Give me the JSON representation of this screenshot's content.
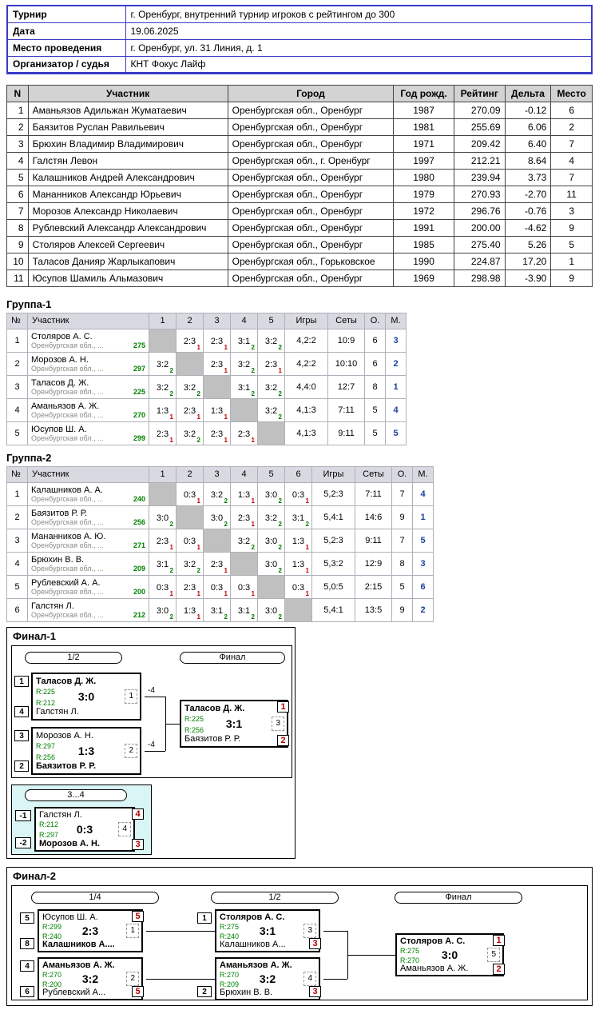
{
  "colors": {
    "info_border": "#3a3ac8",
    "header_gray": "#d3d3d3",
    "group_header": "#d9d9e1",
    "diagonal_gray": "#c0c0c0",
    "win_green": "#007800",
    "loss_red": "#c00000",
    "rating_green": "#008000",
    "place_blue": "#1a3fa0",
    "badge_red": "#b00000",
    "panel_cyan": "#d9f5f5"
  },
  "info": {
    "rows": [
      {
        "label": "Турнир",
        "value": "г. Оренбург, внутренний турнир игроков с рейтингом до 300"
      },
      {
        "label": "Дата",
        "value": "19.06.2025"
      },
      {
        "label": "Место проведения",
        "value": "г. Оренбург, ул. 31 Линия, д. 1"
      },
      {
        "label": "Организатор / судья",
        "value": "КНТ Фокус Лайф"
      }
    ]
  },
  "participants": {
    "headers": [
      "N",
      "Участник",
      "Город",
      "Год рожд.",
      "Рейтинг",
      "Дельта",
      "Место"
    ],
    "rows": [
      [
        "1",
        "Аманьязов Адильжан Жуматаевич",
        "Оренбургская обл., Оренбург",
        "1987",
        "270.09",
        "-0.12",
        "6"
      ],
      [
        "2",
        "Баязитов Руслан Равильевич",
        "Оренбургская обл., Оренбург",
        "1981",
        "255.69",
        "6.06",
        "2"
      ],
      [
        "3",
        "Брюхин Владимир Владимирович",
        "Оренбургская обл., Оренбург",
        "1971",
        "209.42",
        "6.40",
        "7"
      ],
      [
        "4",
        "Галстян Левон",
        "Оренбургская обл., г. Оренбург",
        "1997",
        "212.21",
        "8.64",
        "4"
      ],
      [
        "5",
        "Калашников Андрей Александрович",
        "Оренбургская обл., Оренбург",
        "1980",
        "239.94",
        "3.73",
        "7"
      ],
      [
        "6",
        "Мананников Александр Юрьевич",
        "Оренбургская обл., Оренбург",
        "1979",
        "270.93",
        "-2.70",
        "11"
      ],
      [
        "7",
        "Морозов Александр Николаевич",
        "Оренбургская обл., Оренбург",
        "1972",
        "296.76",
        "-0.76",
        "3"
      ],
      [
        "8",
        "Рублевский Александр Александрович",
        "Оренбургская обл., Оренбург",
        "1991",
        "200.00",
        "-4.62",
        "9"
      ],
      [
        "9",
        "Столяров Алексей Сергеевич",
        "Оренбургская обл., Оренбург",
        "1985",
        "275.40",
        "5.26",
        "5"
      ],
      [
        "10",
        "Таласов Данияр Жарлыкапович",
        "Оренбургская обл., Горьковское",
        "1990",
        "224.87",
        "17.20",
        "1"
      ],
      [
        "11",
        "Юсупов Шамиль Альмазович",
        "Оренбургская обл., Оренбург",
        "1969",
        "298.98",
        "-3.90",
        "9"
      ]
    ]
  },
  "groups": [
    {
      "title": "Группа-1",
      "num_header": "№",
      "name_header": "Участник",
      "round_cols": [
        "1",
        "2",
        "3",
        "4",
        "5"
      ],
      "tail_headers": [
        "Игры",
        "Сеты",
        "О.",
        "М."
      ],
      "rows": [
        {
          "n": "1",
          "name": "Столяров А. С.",
          "region": "Оренбургская обл., ...",
          "rating": "275",
          "cells": [
            null,
            {
              "s": "2:3",
              "p": "1"
            },
            {
              "s": "2:3",
              "p": "1"
            },
            {
              "s": "3:1",
              "p": "2"
            },
            {
              "s": "3:2",
              "p": "2"
            }
          ],
          "games": "4,2:2",
          "sets": "10:9",
          "pts": "6",
          "place": "3"
        },
        {
          "n": "2",
          "name": "Морозов А. Н.",
          "region": "Оренбургская обл., ...",
          "rating": "297",
          "cells": [
            {
              "s": "3:2",
              "p": "2"
            },
            null,
            {
              "s": "2:3",
              "p": "1"
            },
            {
              "s": "3:2",
              "p": "2"
            },
            {
              "s": "2:3",
              "p": "1"
            }
          ],
          "games": "4,2:2",
          "sets": "10:10",
          "pts": "6",
          "place": "2"
        },
        {
          "n": "3",
          "name": "Таласов Д. Ж.",
          "region": "Оренбургская обл., ...",
          "rating": "225",
          "cells": [
            {
              "s": "3:2",
              "p": "2"
            },
            {
              "s": "3:2",
              "p": "2"
            },
            null,
            {
              "s": "3:1",
              "p": "2"
            },
            {
              "s": "3:2",
              "p": "2"
            }
          ],
          "games": "4,4:0",
          "sets": "12:7",
          "pts": "8",
          "place": "1"
        },
        {
          "n": "4",
          "name": "Аманьязов А. Ж.",
          "region": "Оренбургская обл., ...",
          "rating": "270",
          "cells": [
            {
              "s": "1:3",
              "p": "1"
            },
            {
              "s": "2:3",
              "p": "1"
            },
            {
              "s": "1:3",
              "p": "1"
            },
            null,
            {
              "s": "3:2",
              "p": "2"
            }
          ],
          "games": "4,1:3",
          "sets": "7:11",
          "pts": "5",
          "place": "4"
        },
        {
          "n": "5",
          "name": "Юсупов Ш. А.",
          "region": "Оренбургская обл., ...",
          "rating": "299",
          "cells": [
            {
              "s": "2:3",
              "p": "1"
            },
            {
              "s": "3:2",
              "p": "2"
            },
            {
              "s": "2:3",
              "p": "1"
            },
            {
              "s": "2:3",
              "p": "1"
            },
            null
          ],
          "games": "4,1:3",
          "sets": "9:11",
          "pts": "5",
          "place": "5"
        }
      ]
    },
    {
      "title": "Группа-2",
      "num_header": "№",
      "name_header": "Участник",
      "round_cols": [
        "1",
        "2",
        "3",
        "4",
        "5",
        "6"
      ],
      "tail_headers": [
        "Игры",
        "Сеты",
        "О.",
        "М."
      ],
      "rows": [
        {
          "n": "1",
          "name": "Калашников А. А.",
          "region": "Оренбургская обл., ...",
          "rating": "240",
          "cells": [
            null,
            {
              "s": "0:3",
              "p": "1"
            },
            {
              "s": "3:2",
              "p": "2"
            },
            {
              "s": "1:3",
              "p": "1"
            },
            {
              "s": "3:0",
              "p": "2"
            },
            {
              "s": "0:3",
              "p": "1"
            }
          ],
          "games": "5,2:3",
          "sets": "7:11",
          "pts": "7",
          "place": "4"
        },
        {
          "n": "2",
          "name": "Баязитов Р. Р.",
          "region": "Оренбургская обл., ...",
          "rating": "256",
          "cells": [
            {
              "s": "3:0",
              "p": "2"
            },
            null,
            {
              "s": "3:0",
              "p": "2"
            },
            {
              "s": "2:3",
              "p": "1"
            },
            {
              "s": "3:2",
              "p": "2"
            },
            {
              "s": "3:1",
              "p": "2"
            }
          ],
          "games": "5,4:1",
          "sets": "14:6",
          "pts": "9",
          "place": "1"
        },
        {
          "n": "3",
          "name": "Мананников А. Ю.",
          "region": "Оренбургская обл., ...",
          "rating": "271",
          "cells": [
            {
              "s": "2:3",
              "p": "1"
            },
            {
              "s": "0:3",
              "p": "1"
            },
            null,
            {
              "s": "3:2",
              "p": "2"
            },
            {
              "s": "3:0",
              "p": "2"
            },
            {
              "s": "1:3",
              "p": "1"
            }
          ],
          "games": "5,2:3",
          "sets": "9:11",
          "pts": "7",
          "place": "5"
        },
        {
          "n": "4",
          "name": "Брюхин В. В.",
          "region": "Оренбургская обл., ...",
          "rating": "209",
          "cells": [
            {
              "s": "3:1",
              "p": "2"
            },
            {
              "s": "3:2",
              "p": "2"
            },
            {
              "s": "2:3",
              "p": "1"
            },
            null,
            {
              "s": "3:0",
              "p": "2"
            },
            {
              "s": "1:3",
              "p": "1"
            }
          ],
          "games": "5,3:2",
          "sets": "12:9",
          "pts": "8",
          "place": "3"
        },
        {
          "n": "5",
          "name": "Рублевский А. А.",
          "region": "Оренбургская обл., ...",
          "rating": "200",
          "cells": [
            {
              "s": "0:3",
              "p": "1"
            },
            {
              "s": "2:3",
              "p": "1"
            },
            {
              "s": "0:3",
              "p": "1"
            },
            {
              "s": "0:3",
              "p": "1"
            },
            null,
            {
              "s": "0:3",
              "p": "1"
            }
          ],
          "games": "5,0:5",
          "sets": "2:15",
          "pts": "5",
          "place": "6"
        },
        {
          "n": "6",
          "name": "Галстян Л.",
          "region": "Оренбургская обл., ...",
          "rating": "212",
          "cells": [
            {
              "s": "3:0",
              "p": "2"
            },
            {
              "s": "1:3",
              "p": "1"
            },
            {
              "s": "3:1",
              "p": "2"
            },
            {
              "s": "3:1",
              "p": "2"
            },
            {
              "s": "3:0",
              "p": "2"
            },
            null
          ],
          "games": "5,4:1",
          "sets": "13:5",
          "pts": "9",
          "place": "2"
        }
      ]
    }
  ],
  "final1": {
    "title": "Финал-1",
    "rounds": [
      "1/2",
      "Финал"
    ],
    "sf1": {
      "match_no": "1",
      "loser_to": "-4",
      "score": "3:0",
      "top": {
        "seed": "1",
        "name": "Таласов Д. Ж.",
        "rating": "R:225"
      },
      "bottom": {
        "seed": "4",
        "name": "Галстян Л.",
        "rating": "R:212"
      }
    },
    "sf2": {
      "match_no": "2",
      "loser_to": "-4",
      "score": "1:3",
      "top": {
        "seed": "3",
        "name": "Морозов А. Н.",
        "rating": "R:297"
      },
      "bottom": {
        "seed": "2",
        "name": "Баязитов Р. Р.",
        "rating": "R:256"
      }
    },
    "final": {
      "match_no": "3",
      "score": "3:1",
      "top": {
        "name": "Таласов Д. Ж.",
        "rating": "R:225",
        "place": "1"
      },
      "bottom": {
        "name": "Баязитов Р. Р.",
        "rating": "R:256",
        "place": "2"
      }
    },
    "match34": {
      "label": "3...4",
      "match_no": "4",
      "score": "0:3",
      "top": {
        "seed": "-1",
        "name": "Галстян Л.",
        "rating": "R:212",
        "place": "4"
      },
      "bottom": {
        "seed": "-2",
        "name": "Морозов А. Н.",
        "rating": "R:297",
        "place": "3"
      }
    }
  },
  "final2": {
    "title": "Финал-2",
    "rounds": [
      "1/4",
      "1/2",
      "Финал"
    ],
    "qf1": {
      "match_no": "1",
      "score": "2:3",
      "top": {
        "seed": "5",
        "name": "Юсупов Ш. А.",
        "rating": "R:299",
        "place": "5"
      },
      "bottom": {
        "seed": "8",
        "name": "Калашников А....",
        "rating": "R:240"
      }
    },
    "qf2": {
      "match_no": "2",
      "score": "3:2",
      "top": {
        "seed": "4",
        "name": "Аманьязов А. Ж.",
        "rating": "R:270"
      },
      "bottom": {
        "seed": "6",
        "name": "Рублевский А...",
        "rating": "R:200",
        "place": "5"
      }
    },
    "sf1": {
      "match_no": "3",
      "score": "3:1",
      "top": {
        "seed": "1",
        "name": "Столяров А. С.",
        "rating": "R:275"
      },
      "bottom": {
        "name": "Калашников А...",
        "rating": "R:240",
        "place": "3"
      }
    },
    "sf2": {
      "match_no": "4",
      "score": "3:2",
      "top": {
        "name": "Аманьязов А. Ж.",
        "rating": "R:270"
      },
      "bottom": {
        "seed": "2",
        "name": "Брюхин В. В.",
        "rating": "R:209",
        "place": "3"
      }
    },
    "final": {
      "match_no": "5",
      "score": "3:0",
      "top": {
        "name": "Столяров А. С.",
        "rating": "R:275",
        "place": "1"
      },
      "bottom": {
        "name": "Аманьязов А. Ж.",
        "rating": "R:270",
        "place": "2"
      }
    }
  }
}
